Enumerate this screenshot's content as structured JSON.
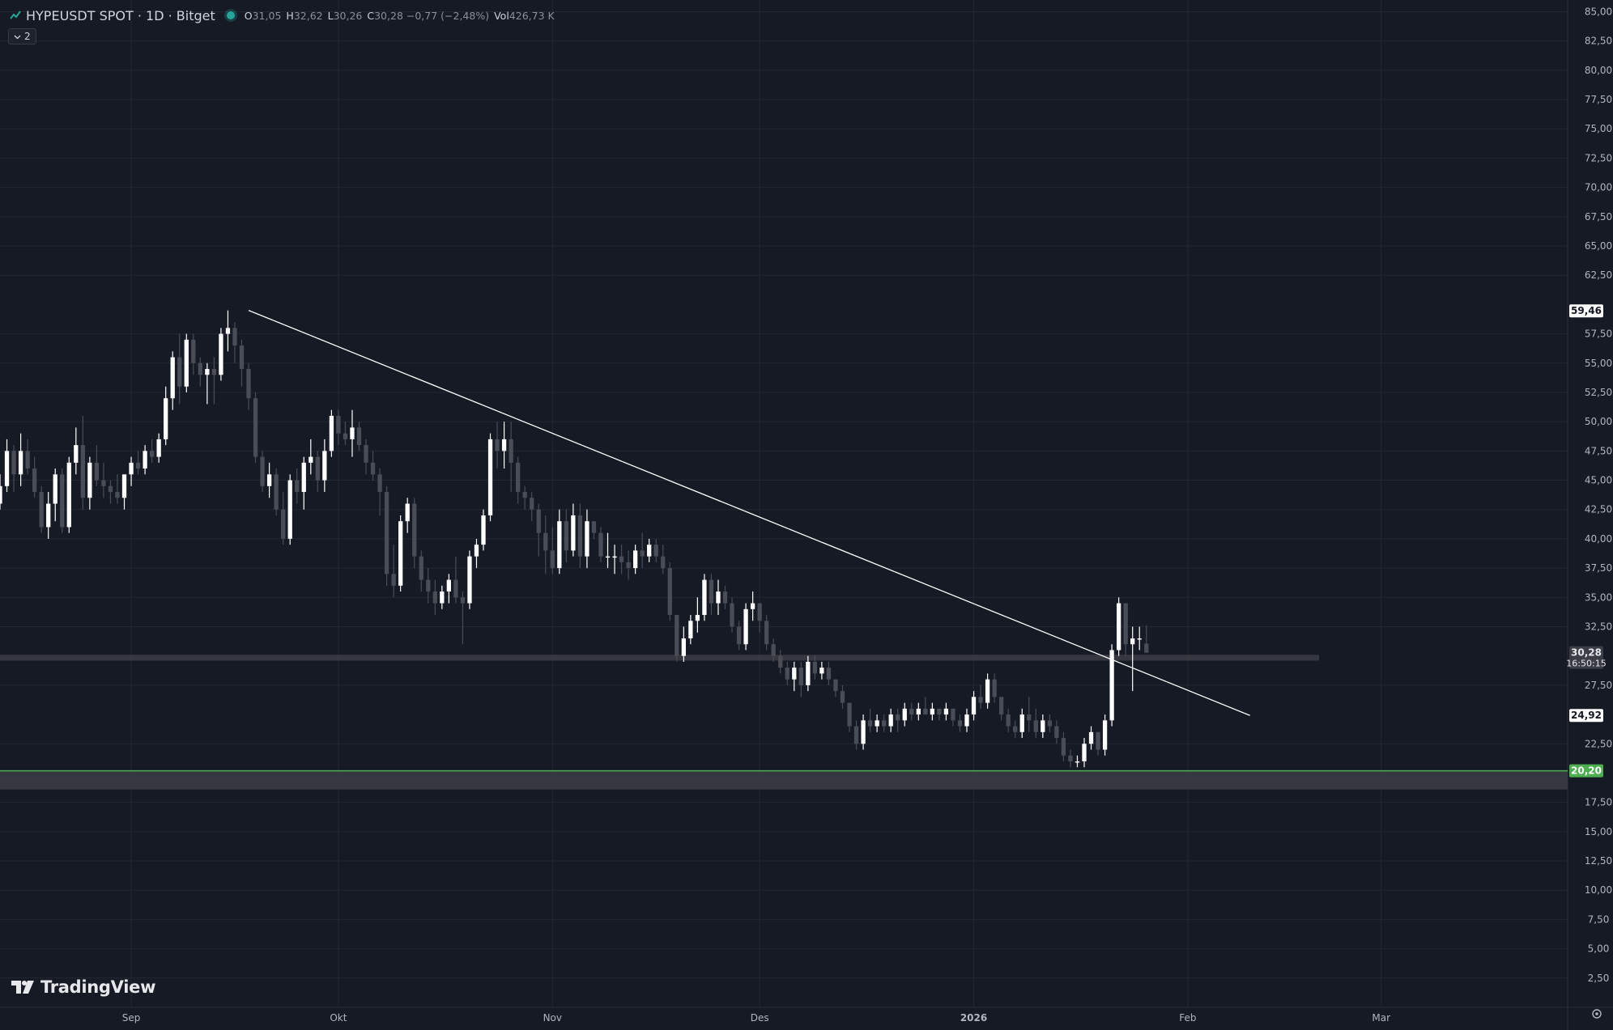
{
  "header": {
    "symbol_title": "HYPEUSDT SPOT · 1D · Bitget",
    "ohlc": [
      {
        "key": "O",
        "value": "31,05"
      },
      {
        "key": "H",
        "value": "32,62"
      },
      {
        "key": "L",
        "value": "30,26"
      },
      {
        "key": "C",
        "value": "30,28 −0,77 (−2,48%)"
      },
      {
        "key": "Vol",
        "value": "426,73 K"
      }
    ]
  },
  "indicator_badge": {
    "label": "2"
  },
  "logo": {
    "text": "TradingView"
  },
  "colors": {
    "background": "#161a25",
    "grid": "#232733",
    "bull_candle": "#ffffff",
    "bear_candle": "#4a4d55",
    "trendline": "#ffffff",
    "support_zone": "#3b3e46",
    "support_line": "#4caf50",
    "status_dot": "#26a69a"
  },
  "chart_data": {
    "type": "candlestick",
    "title": "HYPEUSDT SPOT · 1D · Bitget",
    "xlabel": "",
    "ylabel": "",
    "ylim": [
      0,
      86
    ],
    "grid": true,
    "y_ticks": [
      "85,00",
      "82,50",
      "80,00",
      "77,50",
      "75,00",
      "72,50",
      "70,00",
      "67,50",
      "65,00",
      "62,50",
      "57,50",
      "55,00",
      "52,50",
      "50,00",
      "47,50",
      "45,00",
      "42,50",
      "40,00",
      "37,50",
      "35,00",
      "32,50",
      "27,50",
      "22,50",
      "17,50",
      "15,00",
      "12,50",
      "10,00",
      "7,50",
      "5,00",
      "2,50"
    ],
    "y_tick_values": [
      85,
      82.5,
      80,
      77.5,
      75,
      72.5,
      70,
      67.5,
      65,
      62.5,
      57.5,
      55,
      52.5,
      50,
      47.5,
      45,
      42.5,
      40,
      37.5,
      35,
      32.5,
      27.5,
      22.5,
      17.5,
      15,
      12.5,
      10,
      7.5,
      5,
      2.5
    ],
    "x_ticks": [
      {
        "label": "Sep",
        "date": "2025-09-01"
      },
      {
        "label": "Okt",
        "date": "2025-10-01"
      },
      {
        "label": "Nov",
        "date": "2025-11-01"
      },
      {
        "label": "Des",
        "date": "2025-12-01"
      },
      {
        "label": "2026",
        "date": "2026-01-01"
      },
      {
        "label": "Feb",
        "date": "2026-02-01"
      },
      {
        "label": "Mar",
        "date": "2026-03-01"
      }
    ],
    "x_range": [
      "2025-08-13",
      "2026-03-28"
    ],
    "price_labels": [
      {
        "text": "59,46",
        "value": 59.46,
        "style": "white"
      },
      {
        "text": "30,28",
        "sub": "16:50:15",
        "value": 30.28,
        "style": "gray"
      },
      {
        "text": "24,92",
        "value": 24.92,
        "style": "white"
      },
      {
        "text": "20,20",
        "value": 20.2,
        "style": "green"
      }
    ],
    "trendline": {
      "start": {
        "date": "2025-09-18",
        "price": 59.5
      },
      "end": {
        "date": "2026-02-10",
        "price": 24.92
      }
    },
    "horizontal_zones": [
      {
        "name": "resistance-band",
        "from": 29.6,
        "to": 30.1,
        "start": "2025-08-13",
        "end": "2026-02-20"
      },
      {
        "name": "support-band",
        "from": 18.6,
        "to": 20.2,
        "start": "2025-08-13",
        "end": "2026-03-28"
      }
    ],
    "support_line": {
      "value": 20.2
    },
    "candles_start": "2025-08-13",
    "candles": [
      [
        43,
        45.5,
        42.5,
        44.5
      ],
      [
        44.5,
        48.5,
        44,
        47.5
      ],
      [
        47.5,
        48,
        44,
        45.5
      ],
      [
        45.5,
        49,
        44.5,
        47.5
      ],
      [
        47.5,
        48.5,
        45.5,
        46
      ],
      [
        46,
        47,
        43.5,
        44
      ],
      [
        44,
        44.5,
        40.5,
        41
      ],
      [
        41,
        44,
        40,
        43
      ],
      [
        43,
        46,
        41.5,
        45.5
      ],
      [
        45.5,
        46,
        40.5,
        41
      ],
      [
        41,
        47,
        40.5,
        46.5
      ],
      [
        46.5,
        49.5,
        45.5,
        48
      ],
      [
        48,
        50.5,
        42.5,
        43.5
      ],
      [
        43.5,
        47,
        42.5,
        46.5
      ],
      [
        46.5,
        48,
        44.5,
        45
      ],
      [
        45,
        46.5,
        43.5,
        44.5
      ],
      [
        44.5,
        45,
        43,
        44
      ],
      [
        44,
        45.5,
        43,
        43.5
      ],
      [
        43.5,
        45.5,
        42.5,
        45.5
      ],
      [
        45.5,
        47,
        44.5,
        46.5
      ],
      [
        46.5,
        47.5,
        45.5,
        46
      ],
      [
        46,
        48,
        45.5,
        47.5
      ],
      [
        47.5,
        48.5,
        46.5,
        47
      ],
      [
        47,
        49,
        46.5,
        48.5
      ],
      [
        48.5,
        53,
        48,
        52
      ],
      [
        52,
        56,
        51,
        55.5
      ],
      [
        55.5,
        57.5,
        51.5,
        53
      ],
      [
        53,
        57.5,
        52.5,
        57
      ],
      [
        57,
        57.5,
        54,
        55
      ],
      [
        55,
        55.5,
        53,
        54
      ],
      [
        54,
        55,
        51.5,
        54.5
      ],
      [
        54.5,
        55.5,
        51.5,
        54
      ],
      [
        54,
        58,
        53.5,
        57.5
      ],
      [
        57.5,
        59.5,
        56,
        58
      ],
      [
        58,
        58.5,
        55,
        56.5
      ],
      [
        56.5,
        57,
        53,
        54.5
      ],
      [
        54.5,
        55,
        51,
        52
      ],
      [
        52,
        52.5,
        46.5,
        47
      ],
      [
        47,
        47.5,
        44,
        44.5
      ],
      [
        44.5,
        46.5,
        43.5,
        45.5
      ],
      [
        45.5,
        46,
        42,
        42.5
      ],
      [
        42.5,
        44,
        39.5,
        40
      ],
      [
        40,
        45.5,
        39.5,
        45
      ],
      [
        45,
        46,
        43,
        44
      ],
      [
        44,
        47,
        42.5,
        46.5
      ],
      [
        46.5,
        48.5,
        45.5,
        47
      ],
      [
        47,
        47.5,
        44,
        45
      ],
      [
        45,
        48.5,
        44,
        47.5
      ],
      [
        47.5,
        51,
        47,
        50.5
      ],
      [
        50.5,
        51,
        48,
        49
      ],
      [
        49,
        50,
        48,
        48.5
      ],
      [
        48.5,
        51,
        47,
        49.5
      ],
      [
        49.5,
        50,
        47.5,
        48
      ],
      [
        48,
        48.5,
        45.5,
        46.5
      ],
      [
        46.5,
        47.5,
        45,
        45.5
      ],
      [
        45.5,
        46,
        42,
        44
      ],
      [
        44,
        44.5,
        36,
        37
      ],
      [
        37,
        39.5,
        35,
        36
      ],
      [
        36,
        42,
        35.5,
        41.5
      ],
      [
        41.5,
        43.5,
        40.5,
        43
      ],
      [
        43,
        43.5,
        37.5,
        38.5
      ],
      [
        38.5,
        39,
        35.5,
        36.5
      ],
      [
        36.5,
        37.5,
        34.5,
        35.5
      ],
      [
        35.5,
        36.5,
        33.5,
        34.5
      ],
      [
        34.5,
        36,
        34,
        35.5
      ],
      [
        35.5,
        37,
        34.5,
        36.5
      ],
      [
        36.5,
        38.5,
        34.5,
        35
      ],
      [
        35,
        35.5,
        31,
        34.5
      ],
      [
        34.5,
        39,
        34,
        38.5
      ],
      [
        38.5,
        40,
        37.5,
        39.5
      ],
      [
        39.5,
        42.5,
        39,
        42
      ],
      [
        42,
        49,
        41.5,
        48.5
      ],
      [
        48.5,
        50,
        46,
        47.5
      ],
      [
        47.5,
        50,
        46,
        48.5
      ],
      [
        48.5,
        50,
        44,
        46.5
      ],
      [
        46.5,
        47,
        43,
        44
      ],
      [
        44,
        44.5,
        42.5,
        43.5
      ],
      [
        43.5,
        44,
        41.5,
        42.5
      ],
      [
        42.5,
        43,
        38.5,
        40.5
      ],
      [
        40.5,
        42,
        37,
        39
      ],
      [
        39,
        41,
        37,
        37.5
      ],
      [
        37.5,
        42.5,
        37,
        41.5
      ],
      [
        41.5,
        42.5,
        38,
        39
      ],
      [
        39,
        43,
        38.5,
        42
      ],
      [
        42,
        43,
        37.5,
        38.5
      ],
      [
        38.5,
        42.5,
        37.5,
        41.5
      ],
      [
        41.5,
        41.5,
        40,
        40.5
      ],
      [
        40.5,
        41,
        38,
        38.5
      ],
      [
        38.5,
        40.5,
        37.5,
        38.5
      ],
      [
        38.5,
        39.5,
        37,
        38.5
      ],
      [
        38.5,
        39.5,
        37,
        38
      ],
      [
        38,
        39,
        36.5,
        37.5
      ],
      [
        37.5,
        39.5,
        37,
        39
      ],
      [
        39,
        40.5,
        37.5,
        38.5
      ],
      [
        38.5,
        40,
        38,
        39.5
      ],
      [
        39.5,
        40,
        38,
        38.5
      ],
      [
        38.5,
        39.5,
        37,
        37.5
      ],
      [
        37.5,
        38,
        33,
        33.5
      ],
      [
        33.5,
        33.5,
        29.5,
        30
      ],
      [
        30,
        32.5,
        29.5,
        31.5
      ],
      [
        31.5,
        33.5,
        31,
        33
      ],
      [
        33,
        35,
        32,
        33.5
      ],
      [
        33.5,
        37,
        33,
        36.5
      ],
      [
        36.5,
        37,
        33.5,
        34.5
      ],
      [
        34.5,
        36.5,
        33.5,
        35.5
      ],
      [
        35.5,
        36,
        34,
        34.5
      ],
      [
        34.5,
        35,
        32,
        32.5
      ],
      [
        32.5,
        33,
        30.5,
        31
      ],
      [
        31,
        34.5,
        30.5,
        34
      ],
      [
        34,
        35.5,
        33,
        34.5
      ],
      [
        34.5,
        34.5,
        32,
        33
      ],
      [
        33,
        33.5,
        30.5,
        31
      ],
      [
        31,
        31.5,
        29.5,
        30
      ],
      [
        30,
        30.5,
        28.5,
        29
      ],
      [
        29,
        29.5,
        27.5,
        28
      ],
      [
        28,
        29.5,
        27,
        29
      ],
      [
        29,
        29.5,
        26.5,
        27.5
      ],
      [
        27.5,
        30,
        27,
        29.5
      ],
      [
        29.5,
        30,
        28,
        28.5
      ],
      [
        28.5,
        29.5,
        28,
        29
      ],
      [
        29,
        29.5,
        27.5,
        28
      ],
      [
        28,
        28,
        26.5,
        27
      ],
      [
        27,
        27.5,
        25.5,
        26
      ],
      [
        26,
        26,
        23.5,
        24
      ],
      [
        24,
        24.5,
        22,
        22.5
      ],
      [
        22.5,
        25,
        22,
        24.5
      ],
      [
        24.5,
        25.5,
        23.5,
        24
      ],
      [
        24,
        25,
        23.5,
        24.5
      ],
      [
        24.5,
        25,
        23.5,
        24
      ],
      [
        24,
        25.5,
        23.5,
        25
      ],
      [
        25,
        25.5,
        23.5,
        24.5
      ],
      [
        24.5,
        26,
        24,
        25.5
      ],
      [
        25.5,
        26,
        24.5,
        25
      ],
      [
        25,
        26,
        24.5,
        25.5
      ],
      [
        25.5,
        26.5,
        25,
        25
      ],
      [
        25,
        26,
        24.5,
        25.5
      ],
      [
        25.5,
        25.5,
        24.5,
        25
      ],
      [
        25,
        26,
        24.5,
        25.5
      ],
      [
        25.5,
        25.5,
        24,
        24.5
      ],
      [
        24.5,
        25,
        23.5,
        24
      ],
      [
        24,
        25.5,
        23.5,
        25
      ],
      [
        25,
        27,
        24.5,
        26.5
      ],
      [
        26.5,
        27.5,
        25.5,
        26
      ],
      [
        26,
        28.5,
        25.5,
        28
      ],
      [
        28,
        28.5,
        26,
        26.5
      ],
      [
        26.5,
        26.5,
        24.5,
        25
      ],
      [
        25,
        25.5,
        23.5,
        24
      ],
      [
        24,
        24.5,
        23,
        23.5
      ],
      [
        23.5,
        25.5,
        23,
        25
      ],
      [
        25,
        26.5,
        23.5,
        24.5
      ],
      [
        24.5,
        25.5,
        23,
        23.5
      ],
      [
        23.5,
        25,
        23,
        24.5
      ],
      [
        24.5,
        25,
        23.5,
        24
      ],
      [
        24,
        24.5,
        22.5,
        23
      ],
      [
        23,
        23.5,
        21,
        21.5
      ],
      [
        21.5,
        22,
        20.5,
        21
      ],
      [
        21,
        21.5,
        20.5,
        21
      ],
      [
        21,
        23,
        20.5,
        22.5
      ],
      [
        22.5,
        24,
        22,
        23.5
      ],
      [
        23.5,
        23.5,
        21.5,
        22
      ],
      [
        22,
        25,
        21.5,
        24.5
      ],
      [
        24.5,
        31,
        24,
        30.5
      ],
      [
        30.5,
        35,
        30,
        34.5
      ],
      [
        34.5,
        34.5,
        30,
        31
      ],
      [
        31,
        32.5,
        27,
        31.5
      ],
      [
        31.5,
        32.5,
        30.5,
        31.5
      ],
      [
        31.05,
        32.62,
        30.26,
        30.28
      ]
    ]
  }
}
